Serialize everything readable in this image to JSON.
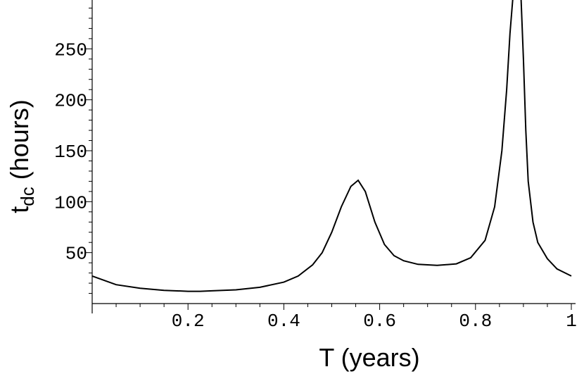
{
  "chart_data": {
    "type": "line",
    "title": "",
    "xlabel": "T (years)",
    "ylabel": {
      "main": "t",
      "subscript": "dc",
      "rest": " (hours)"
    },
    "xlim": [
      0,
      1
    ],
    "ylim": [
      0,
      300
    ],
    "grid": false,
    "x_ticks": [
      {
        "value": 0.2,
        "label": "0.2"
      },
      {
        "value": 0.4,
        "label": "0.4"
      },
      {
        "value": 0.6,
        "label": "0.6"
      },
      {
        "value": 0.8,
        "label": "0.8"
      },
      {
        "value": 1.0,
        "label": "1"
      }
    ],
    "y_ticks": [
      {
        "value": 50,
        "label": "50"
      },
      {
        "value": 100,
        "label": "100"
      },
      {
        "value": 150,
        "label": "150"
      },
      {
        "value": 200,
        "label": "200"
      },
      {
        "value": 250,
        "label": "250"
      }
    ],
    "series": [
      {
        "x": [
          0,
          0.05,
          0.1,
          0.15,
          0.2,
          0.225,
          0.25,
          0.3,
          0.35,
          0.4,
          0.43,
          0.46,
          0.48,
          0.5,
          0.52,
          0.54,
          0.555,
          0.57,
          0.59,
          0.61,
          0.63,
          0.65,
          0.68,
          0.72,
          0.76,
          0.79,
          0.82,
          0.84,
          0.855,
          0.865,
          0.872,
          0.878,
          0.885,
          0.895,
          0.9,
          0.905,
          0.91,
          0.92,
          0.93,
          0.95,
          0.97,
          1.0
        ],
        "y": [
          27,
          18.5,
          15,
          13,
          12,
          12,
          12.5,
          13.5,
          16,
          21,
          27,
          38,
          50,
          70,
          95,
          115,
          121,
          110,
          80,
          58,
          47,
          42,
          38.5,
          37.5,
          39,
          45,
          62,
          95,
          150,
          210,
          265,
          300,
          320,
          300,
          240,
          170,
          120,
          80,
          60,
          44,
          34,
          27
        ]
      }
    ]
  }
}
